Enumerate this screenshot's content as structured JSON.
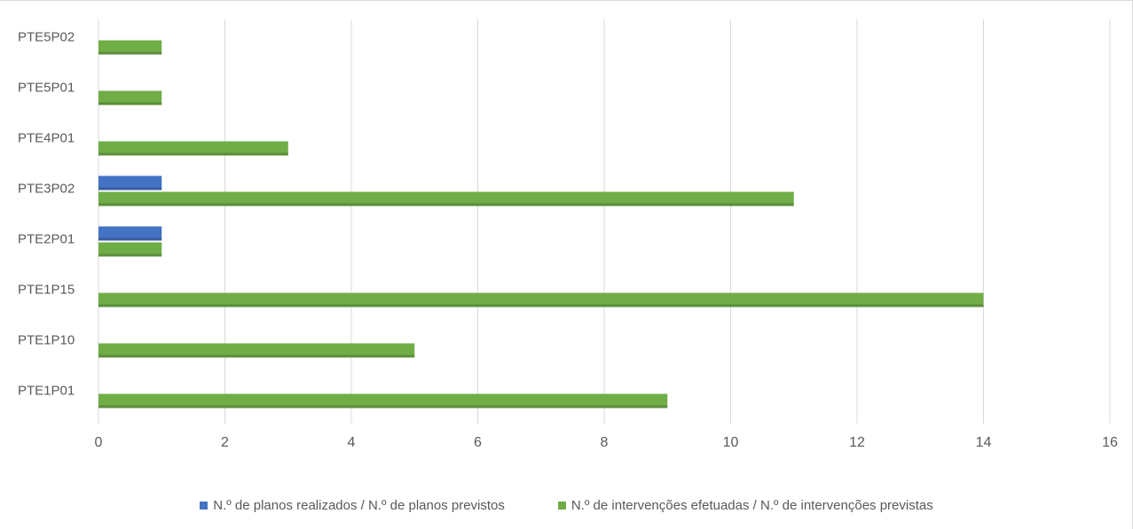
{
  "chart_data": {
    "type": "bar",
    "orientation": "horizontal",
    "categories": [
      "PTE5P02",
      "PTE5P01",
      "PTE4P01",
      "PTE3P02",
      "PTE2P01",
      "PTE1P15",
      "PTE1P10",
      "PTE1P01"
    ],
    "series": [
      {
        "name": "N.º de planos realizados / N.º de planos previstos",
        "color": "#4472C4",
        "values": [
          0,
          0,
          0,
          1,
          1,
          0,
          0,
          0
        ]
      },
      {
        "name": "N.º de intervenções efetuadas / N.º de intervenções previstas",
        "color": "#70AD47",
        "values": [
          1,
          1,
          3,
          11,
          1,
          14,
          5,
          9
        ]
      }
    ],
    "xlim": [
      0,
      16
    ],
    "xticks": [
      "0",
      "2",
      "4",
      "6",
      "8",
      "10",
      "12",
      "14",
      "16"
    ],
    "grid": true,
    "legend_position": "bottom"
  }
}
